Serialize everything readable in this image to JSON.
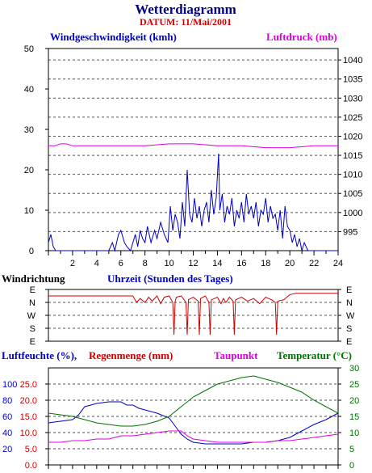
{
  "header": {
    "title": "Wetterdiagramm",
    "date": "DATUM: 11/Mai/2001"
  },
  "colors": {
    "wind": "#0000c0",
    "pressure": "#e000e0",
    "direction": "#d00000",
    "humidity": "#0000c0",
    "rain": "#d00000",
    "dewpoint": "#e000e0",
    "temperature": "#007000",
    "title": "#000080",
    "date": "#d00000"
  },
  "chart_data": [
    {
      "type": "line",
      "name": "wind-pressure",
      "title_left": "Windgeschwindigkeit (kmh)",
      "title_right": "Luftdruck (mb)",
      "xlabel": "Uhrzeit (Stunden des Tages)",
      "xlim": [
        0,
        24
      ],
      "xticks": [
        "2",
        "4",
        "6",
        "8",
        "10",
        "12",
        "14",
        "16",
        "18",
        "20",
        "22",
        "24"
      ],
      "ylim_left": [
        0,
        50
      ],
      "yticks_left": [
        "0",
        "10",
        "20",
        "30",
        "40",
        "50"
      ],
      "ylim_right": [
        990,
        1043
      ],
      "yticks_right": [
        "995",
        "1000",
        "1005",
        "1010",
        "1015",
        "1020",
        "1025",
        "1030",
        "1035",
        "1040"
      ],
      "series": [
        {
          "name": "Windgeschwindigkeit",
          "axis": "left",
          "x": [
            0,
            0.2,
            0.4,
            0.6,
            0.8,
            5.0,
            5.3,
            5.5,
            5.8,
            6.0,
            6.3,
            6.5,
            6.8,
            7.0,
            7.2,
            7.4,
            7.6,
            7.8,
            8.0,
            8.2,
            8.5,
            8.8,
            9.0,
            9.3,
            9.6,
            9.9,
            10.1,
            10.3,
            10.5,
            10.7,
            10.9,
            11.1,
            11.3,
            11.5,
            11.7,
            11.9,
            12.1,
            12.3,
            12.5,
            12.7,
            12.9,
            13.1,
            13.3,
            13.5,
            13.7,
            13.9,
            14.1,
            14.2,
            14.4,
            14.6,
            14.8,
            15.0,
            15.2,
            15.4,
            15.6,
            15.8,
            16.0,
            16.2,
            16.4,
            16.6,
            16.8,
            17.0,
            17.2,
            17.4,
            17.6,
            17.8,
            18.0,
            18.2,
            18.4,
            18.6,
            18.8,
            19.0,
            19.2,
            19.4,
            19.6,
            19.8,
            20.0,
            20.2,
            20.4,
            20.6,
            20.8,
            21.0,
            21.2,
            21.5,
            24
          ],
          "y": [
            2,
            4,
            1,
            0,
            0,
            0,
            2,
            0,
            4,
            5,
            2,
            1,
            0,
            2,
            4,
            1,
            5,
            3,
            2,
            6,
            2,
            5,
            3,
            7,
            4,
            2,
            11,
            5,
            9,
            7,
            3,
            12,
            6,
            20,
            9,
            7,
            13,
            8,
            11,
            6,
            10,
            12,
            7,
            15,
            9,
            13,
            24,
            10,
            14,
            7,
            11,
            9,
            13,
            6,
            10,
            8,
            12,
            7,
            14,
            9,
            11,
            8,
            12,
            6,
            10,
            9,
            13,
            7,
            11,
            8,
            9,
            5,
            10,
            3,
            11,
            6,
            5,
            2,
            4,
            1,
            3,
            0,
            2,
            0,
            0
          ],
          "color_key": "wind"
        },
        {
          "name": "Luftdruck",
          "axis": "right",
          "x": [
            0,
            0.5,
            1.0,
            1.5,
            2.0,
            4.0,
            6.0,
            8.0,
            10.0,
            12.0,
            14.0,
            16.0,
            18.0,
            20.0,
            22.0,
            24.0
          ],
          "y": [
            1017.5,
            1017.5,
            1018,
            1018,
            1017.5,
            1017.5,
            1017.5,
            1017.5,
            1018,
            1018,
            1017.5,
            1017.5,
            1017,
            1017,
            1017.5,
            1017.5
          ],
          "color_key": "pressure"
        }
      ]
    },
    {
      "type": "line",
      "name": "wind-direction",
      "title": "Windrichtung",
      "xlim": [
        0,
        24
      ],
      "categories": [
        "E",
        "N",
        "W",
        "S",
        "E"
      ],
      "series": [
        {
          "name": "Windrichtung",
          "x": [
            0,
            7.0,
            7.3,
            7.6,
            8.0,
            8.3,
            8.6,
            9.0,
            9.3,
            9.6,
            10.0,
            10.3,
            10.4,
            10.5,
            10.6,
            11.0,
            11.4,
            11.5,
            11.6,
            12.0,
            12.4,
            12.5,
            12.6,
            13.0,
            13.3,
            13.4,
            13.5,
            14.0,
            14.3,
            14.5,
            14.7,
            15.0,
            15.3,
            15.4,
            15.5,
            16.0,
            16.5,
            17.0,
            17.5,
            18.0,
            18.5,
            18.8,
            18.9,
            19.0,
            19.5,
            20.0,
            20.5,
            21.0,
            24
          ],
          "y": [
            0.5,
            0.5,
            1.0,
            0.7,
            1.0,
            0.6,
            0.9,
            0.5,
            1.1,
            0.6,
            0.5,
            1.0,
            3.5,
            0.9,
            0.6,
            0.5,
            1.0,
            3.5,
            0.8,
            0.6,
            0.9,
            3.5,
            0.7,
            0.5,
            1.0,
            3.5,
            0.8,
            0.6,
            1.1,
            0.7,
            1.0,
            0.6,
            0.9,
            3.5,
            0.8,
            0.6,
            0.9,
            0.7,
            1.1,
            0.6,
            0.8,
            1.0,
            3.5,
            0.9,
            0.8,
            0.4,
            0.3,
            0.3,
            0.3
          ],
          "color_key": "direction"
        }
      ]
    },
    {
      "type": "line",
      "name": "humidity-rain-dewpoint-temp",
      "title_humidity": "Luftfeuchte (%),",
      "title_rain": "Regenmenge (mm)",
      "title_dewpoint": "Taupunkt",
      "title_temperature": "Temperatur (°C)",
      "xlim": [
        0,
        24
      ],
      "yticks_humidity": [
        "20",
        "40",
        "60",
        "80",
        "100"
      ],
      "yticks_rain": [
        "0.0",
        "5.0",
        "10.0",
        "15.0",
        "20.0",
        "25.0"
      ],
      "ylim_rain": [
        0,
        30
      ],
      "yticks_temp": [
        "0",
        "5",
        "10",
        "15",
        "20",
        "25",
        "30"
      ],
      "ylim_temp": [
        0,
        30
      ],
      "series": [
        {
          "name": "Luftfeuchte",
          "unit_scale": "rain",
          "x": [
            0,
            1.0,
            2.0,
            2.5,
            3.0,
            4.0,
            5.0,
            6.0,
            6.5,
            7.0,
            7.5,
            8.0,
            9.0,
            10.0,
            10.5,
            11.0,
            11.5,
            12.0,
            13.0,
            14.0,
            15.0,
            16.0,
            17.0,
            18.0,
            19.0,
            20.0,
            21.0,
            22.0,
            23.0,
            24.0
          ],
          "y": [
            13,
            13.5,
            14,
            15.5,
            18,
            19,
            19.5,
            19.5,
            18.5,
            18.5,
            17.5,
            17,
            16,
            14.5,
            12,
            9.5,
            8,
            7,
            6.5,
            6.5,
            6.5,
            6.5,
            7,
            7,
            7.5,
            8.5,
            10.5,
            12.5,
            14,
            16
          ],
          "color_key": "humidity"
        },
        {
          "name": "Taupunkt",
          "unit_scale": "temp",
          "x": [
            0,
            1.0,
            2.0,
            3.0,
            4.0,
            5.0,
            6.0,
            7.0,
            8.0,
            9.0,
            10.0,
            11.0,
            11.5,
            12.0,
            13.0,
            14.0,
            15.0,
            16.0,
            17.0,
            18.0,
            19.0,
            20.0,
            21.0,
            22.0,
            23.0,
            24.0
          ],
          "y": [
            7,
            7,
            7.5,
            7.5,
            8,
            8,
            9,
            9,
            9.5,
            10,
            10.5,
            10.5,
            9,
            8,
            7.5,
            7,
            7,
            7,
            7,
            7,
            7.5,
            7.5,
            8,
            8.5,
            9,
            9.5
          ],
          "color_key": "dewpoint"
        },
        {
          "name": "Temperatur",
          "unit_scale": "temp",
          "x": [
            0,
            1.0,
            2.0,
            3.0,
            4.0,
            5.0,
            6.0,
            7.0,
            8.0,
            9.0,
            10.0,
            11.0,
            12.0,
            13.0,
            14.0,
            15.0,
            16.0,
            17.0,
            18.0,
            19.0,
            20.0,
            21.0,
            22.0,
            23.0,
            24.0
          ],
          "y": [
            16,
            15.5,
            15,
            14,
            13,
            12.5,
            12,
            12,
            12.5,
            13.5,
            15,
            18,
            21,
            23,
            25,
            26,
            27,
            27.5,
            26.5,
            25.5,
            24,
            22.5,
            20,
            18,
            16
          ],
          "color_key": "temperature"
        }
      ]
    }
  ]
}
